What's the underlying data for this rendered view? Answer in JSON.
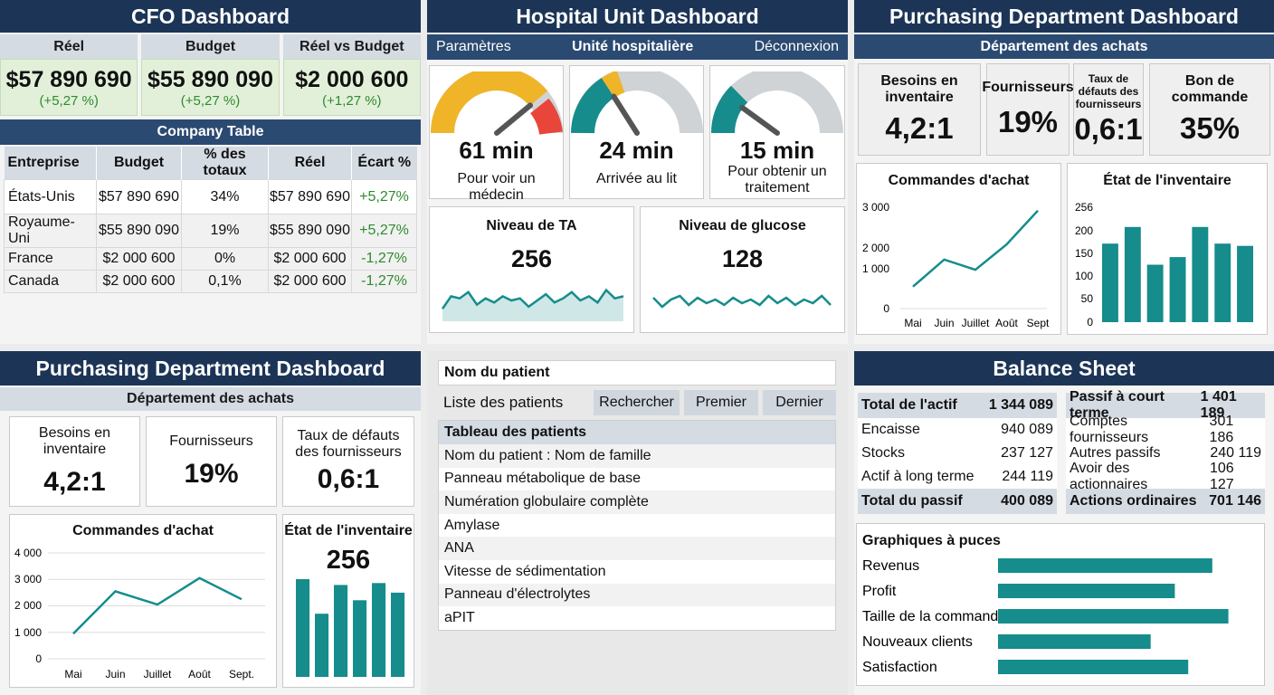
{
  "colors": {
    "navy": "#1c3557",
    "teal": "#168c8c",
    "gauge_yellow": "#f0b429",
    "gauge_red": "#e8463a",
    "gauge_gray": "#cfd3d6",
    "green_positive": "#2e8b2e"
  },
  "cfo": {
    "title": "CFO Dashboard",
    "kpis": [
      {
        "label": "Réel",
        "value": "$57 890 690",
        "change": "(+5,27 %)"
      },
      {
        "label": "Budget",
        "value": "$55 890 090",
        "change": "(+5,27 %)"
      },
      {
        "label": "Réel vs Budget",
        "value": "$2 000 600",
        "change": "(+1,27 %)"
      }
    ],
    "table_title": "Company Table",
    "headers": [
      "Entreprise",
      "Budget",
      "% des totaux",
      "Réel",
      "Écart %"
    ],
    "rows": [
      [
        "États-Unis",
        "$57 890 690",
        "34%",
        "$57 890 690",
        "+5,27%"
      ],
      [
        "Royaume-Uni",
        "$55 890 090",
        "19%",
        "$55 890 090",
        "+5,27%"
      ],
      [
        "France",
        "$2 000 600",
        "0%",
        "$2 000 600",
        "-1,27%"
      ],
      [
        "Canada",
        "$2 000 600",
        "0,1%",
        "$2 000 600",
        "-1,27%"
      ]
    ]
  },
  "hospital": {
    "title": "Hospital Unit Dashboard",
    "nav": {
      "left": "Paramètres",
      "center": "Unité hospitalière",
      "right": "Déconnexion"
    },
    "gauges": [
      {
        "value": "61 min",
        "label": "Pour voir un médecin",
        "level": 0.78
      },
      {
        "value": "24 min",
        "label": "Arrivée au lit",
        "level": 0.32
      },
      {
        "value": "15 min",
        "label": "Pour obtenir un traitement",
        "level": 0.2
      }
    ],
    "sparks": [
      {
        "title": "Niveau de TA",
        "value": "256"
      },
      {
        "title": "Niveau de glucose",
        "value": "128"
      }
    ]
  },
  "purchasing_top": {
    "title": "Purchasing Department Dashboard",
    "subtitle": "Département des achats",
    "kpis": [
      {
        "label": "Besoins en inventaire",
        "value": "4,2:1"
      },
      {
        "label": "Fournisseurs",
        "value": "19%"
      },
      {
        "label": "Taux de défauts des fournisseurs",
        "value": "0,6:1"
      },
      {
        "label": "Bon de commande",
        "value": "35%"
      }
    ],
    "line_title": "Commandes d'achat",
    "line_yticks": [
      "3 000",
      "2 000",
      "1 000",
      "0"
    ],
    "bar_title": "État de l'inventaire",
    "bar_yticks": [
      "256",
      "200",
      "150",
      "100",
      "50",
      "0"
    ]
  },
  "purchasing_bottom": {
    "title": "Purchasing Department Dashboard",
    "subtitle": "Département des achats",
    "kpis": [
      {
        "label": "Besoins en inventaire",
        "value": "4,2:1"
      },
      {
        "label": "Fournisseurs",
        "value": "19%"
      },
      {
        "label": "Taux de défauts des fournisseurs",
        "value": "0,6:1"
      }
    ],
    "line_title": "Commandes d'achat",
    "line_yticks": [
      "4 000",
      "3 000",
      "2 000",
      "1 000",
      "0"
    ],
    "inv_title": "État de l'inventaire",
    "inv_value": "256"
  },
  "patients": {
    "name_label": "Nom du patient",
    "list_label": "Liste des patients",
    "buttons": [
      "Rechercher",
      "Premier",
      "Dernier"
    ],
    "table_title": "Tableau des patients",
    "rows": [
      "Nom du patient : Nom de famille",
      "Panneau métabolique de base",
      "Numération globulaire complète",
      "Amylase",
      "ANA",
      "Vitesse de sédimentation",
      "Panneau d'électrolytes",
      "aPIT"
    ]
  },
  "balance": {
    "title": "Balance Sheet",
    "left": [
      [
        "Total de l'actif",
        "1 344 089"
      ],
      [
        "Encaisse",
        "940 089"
      ],
      [
        "Stocks",
        "237 127"
      ],
      [
        "Actif à long terme",
        "244 119"
      ],
      [
        "Total du passif",
        "400 089"
      ]
    ],
    "right": [
      [
        "Passif à court terme",
        "1 401 189"
      ],
      [
        "Comptes fournisseurs",
        "301 186"
      ],
      [
        "Autres passifs",
        "240 119"
      ],
      [
        "Avoir des actionnaires",
        "106 127"
      ],
      [
        "Actions ordinaires",
        "701 146"
      ]
    ],
    "bullet_title": "Graphiques à puces"
  },
  "chart_data": [
    {
      "type": "line",
      "categories": [
        "Mai",
        "Juin",
        "Juillet",
        "Août",
        "Sept"
      ],
      "values": [
        650,
        1450,
        1150,
        1900,
        2900
      ],
      "title": "Commandes d'achat",
      "ylim": [
        0,
        3000
      ]
    },
    {
      "type": "bar",
      "values": [
        175,
        212,
        128,
        145,
        212,
        175,
        170
      ],
      "title": "État de l'inventaire",
      "ylim": [
        0,
        256
      ]
    },
    {
      "type": "line",
      "categories": [
        "Mai",
        "Juin",
        "Juillet",
        "Août",
        "Sept."
      ],
      "values": [
        950,
        2550,
        2050,
        3050,
        2250
      ],
      "title": "Commandes d'achat",
      "ylim": [
        0,
        4000
      ]
    },
    {
      "type": "bar",
      "values": [
        2.55,
        1.65,
        2.4,
        2.0,
        2.45,
        2.2
      ],
      "title": "État de l'inventaire",
      "ylim": [
        0,
        3
      ]
    },
    {
      "type": "bar",
      "orientation": "horizontal",
      "title": "Graphiques à puces",
      "categories": [
        "Revenus",
        "Profit",
        "Taille de la commande",
        "Nouveaux clients",
        "Satisfaction"
      ],
      "values": [
        0.8,
        0.66,
        0.86,
        0.57,
        0.71
      ],
      "xlim": [
        0,
        1
      ]
    },
    {
      "type": "area",
      "title": "Niveau de TA",
      "values": [
        0.3,
        0.6,
        0.55,
        0.7,
        0.4,
        0.55,
        0.45,
        0.6,
        0.5,
        0.55,
        0.35,
        0.5,
        0.65,
        0.45,
        0.55,
        0.7,
        0.5,
        0.6,
        0.45,
        0.75,
        0.55,
        0.6
      ]
    },
    {
      "type": "line",
      "title": "Niveau de glucose",
      "values": [
        0.55,
        0.3,
        0.5,
        0.6,
        0.35,
        0.55,
        0.4,
        0.5,
        0.35,
        0.55,
        0.4,
        0.5,
        0.35,
        0.6,
        0.4,
        0.55,
        0.35,
        0.5,
        0.4,
        0.6,
        0.35
      ]
    }
  ]
}
